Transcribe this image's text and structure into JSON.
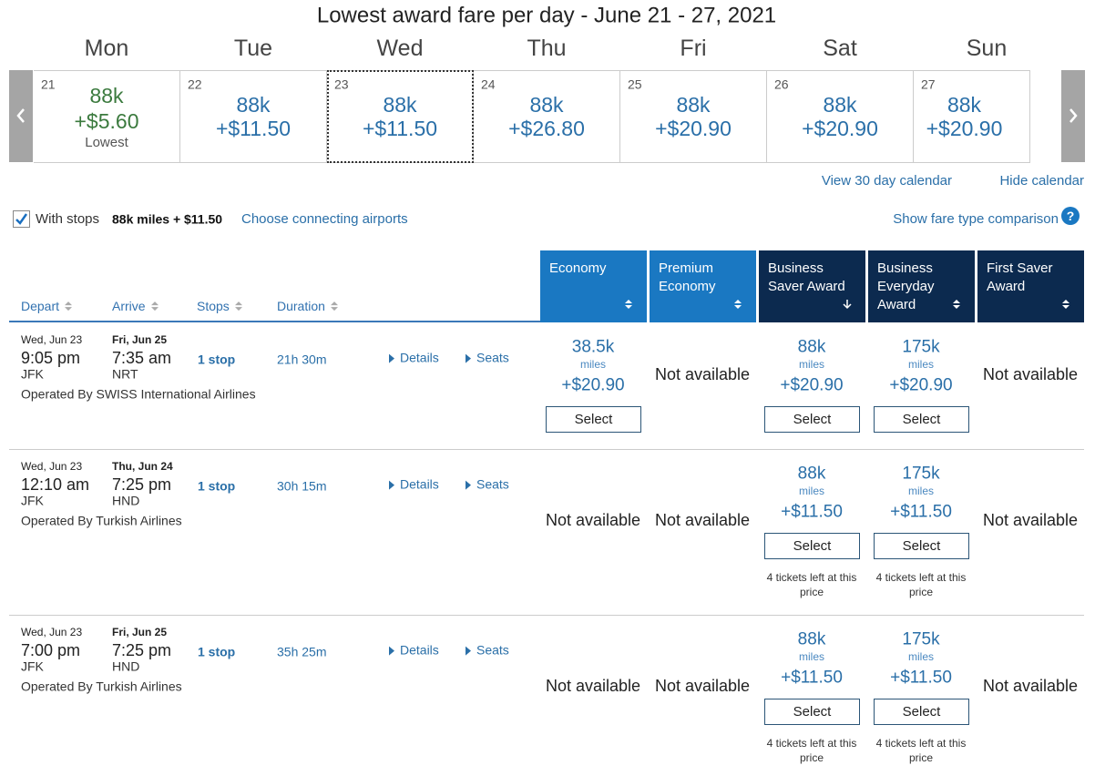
{
  "calendar": {
    "title": "Lowest award fare per day - June 21 - 27, 2021",
    "days": [
      {
        "weekday": "Mon",
        "date": "21",
        "miles": "88k",
        "price": "+$5.60",
        "note": "Lowest"
      },
      {
        "weekday": "Tue",
        "date": "22",
        "miles": "88k",
        "price": "+$11.50"
      },
      {
        "weekday": "Wed",
        "date": "23",
        "miles": "88k",
        "price": "+$11.50"
      },
      {
        "weekday": "Thu",
        "date": "24",
        "miles": "88k",
        "price": "+$26.80"
      },
      {
        "weekday": "Fri",
        "date": "25",
        "miles": "88k",
        "price": "+$20.90"
      },
      {
        "weekday": "Sat",
        "date": "26",
        "miles": "88k",
        "price": "+$20.90"
      },
      {
        "weekday": "Sun",
        "date": "27",
        "miles": "88k",
        "price": "+$20.90"
      }
    ],
    "links": [
      "View 30 day calendar",
      "Hide calendar"
    ]
  },
  "filters": {
    "with_stops": "With stops",
    "summary": "88k miles + $11.50",
    "connecting": "Choose connecting airports",
    "comparison": "Show fare type comparison",
    "help_icon": "?"
  },
  "columns": {
    "sort": [
      "Depart",
      "Arrive",
      "Stops",
      "Duration"
    ],
    "fares": [
      "Economy",
      "Premium Economy",
      "Business Saver Award",
      "Business Everyday Award",
      "First Saver Award"
    ]
  },
  "flights": [
    {
      "depart_date": "Wed, Jun 23",
      "depart_time": "9:05 pm",
      "origin": "JFK",
      "arrive_date": "Fri, Jun 25",
      "arrive_time": "7:35 am",
      "destination": "NRT",
      "stops": "1 stop",
      "duration": "21h 30m",
      "details": "Details",
      "seats": "Seats",
      "operator": "Operated By SWISS International Airlines",
      "fares": [
        {
          "miles": "38.5k",
          "unit": "miles",
          "price": "+$20.90",
          "button": "Select"
        },
        {
          "status": "Not available"
        },
        {
          "miles": "88k",
          "unit": "miles",
          "price": "+$20.90",
          "button": "Select"
        },
        {
          "miles": "175k",
          "unit": "miles",
          "price": "+$20.90",
          "button": "Select"
        },
        {
          "status": "Not available"
        }
      ]
    },
    {
      "depart_date": "Wed, Jun 23",
      "depart_time": "12:10 am",
      "origin": "JFK",
      "arrive_date": "Thu, Jun 24",
      "arrive_time": "7:25 pm",
      "destination": "HND",
      "stops": "1 stop",
      "duration": "30h 15m",
      "details": "Details",
      "seats": "Seats",
      "operator": "Operated By Turkish Airlines",
      "fares": [
        {
          "status": "Not available"
        },
        {
          "status": "Not available"
        },
        {
          "miles": "88k",
          "unit": "miles",
          "price": "+$11.50",
          "button": "Select",
          "tickets_left": "4 tickets left at this price"
        },
        {
          "miles": "175k",
          "unit": "miles",
          "price": "+$11.50",
          "button": "Select",
          "tickets_left": "4 tickets left at this price"
        },
        {
          "status": "Not available"
        }
      ]
    },
    {
      "depart_date": "Wed, Jun 23",
      "depart_time": "7:00 pm",
      "origin": "JFK",
      "arrive_date": "Fri, Jun 25",
      "arrive_time": "7:25 pm",
      "destination": "HND",
      "stops": "1 stop",
      "duration": "35h 25m",
      "details": "Details",
      "seats": "Seats",
      "operator": "Operated By Turkish Airlines",
      "fares": [
        {
          "status": "Not available"
        },
        {
          "status": "Not available"
        },
        {
          "miles": "88k",
          "unit": "miles",
          "price": "+$11.50",
          "button": "Select",
          "tickets_left": "4 tickets left at this price"
        },
        {
          "miles": "175k",
          "unit": "miles",
          "price": "+$11.50",
          "button": "Select",
          "tickets_left": "4 tickets left at this price"
        },
        {
          "status": "Not available"
        }
      ]
    }
  ]
}
